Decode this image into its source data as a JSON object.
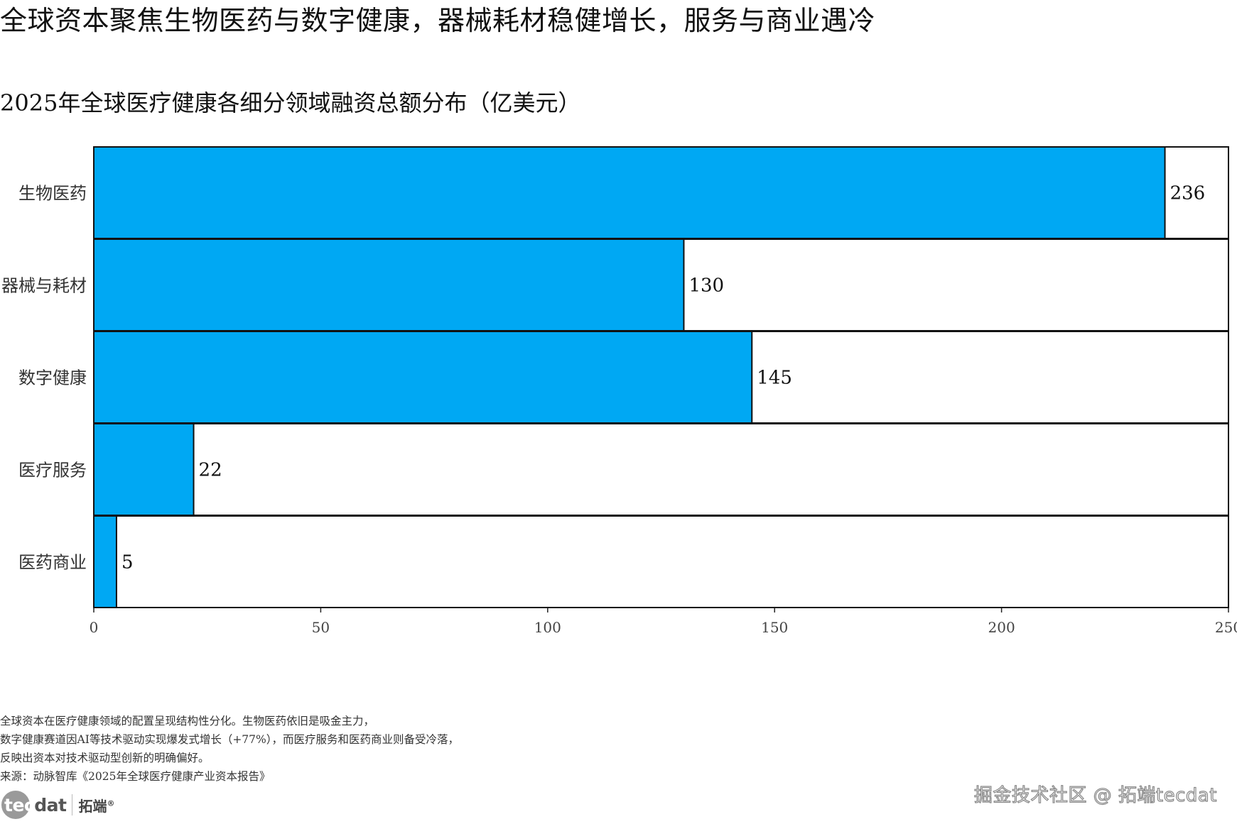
{
  "page": {
    "title": "全球资本聚焦生物医药与数字健康，器械耗材稳健增长，服务与商业遇冷"
  },
  "chart_data": {
    "type": "bar",
    "orientation": "horizontal",
    "title": "2025年全球医疗健康各细分领域融资总额分布（亿美元）",
    "categories": [
      "生物医药",
      "器械与耗材",
      "数字健康",
      "医疗服务",
      "医药商业"
    ],
    "values": [
      236,
      130,
      145,
      22,
      5
    ],
    "value_labels": [
      "236",
      "130",
      "145",
      "22",
      "5"
    ],
    "xlim": [
      0,
      250
    ],
    "xticks": [
      "0",
      "50",
      "100",
      "150",
      "200",
      "250"
    ],
    "xtick_values": [
      0,
      50,
      100,
      150,
      200,
      250
    ],
    "bar_color": "#00a8f3",
    "track_color": "#ffffff",
    "edge_color": "#111111",
    "grid": false,
    "legend": "none"
  },
  "notes": [
    "全球资本在医疗健康领域的配置呈现结构性分化。生物医药依旧是吸金主力，",
    "数字健康赛道因AI等技术驱动实现爆发式增长（+77%），而医疗服务和医药商业则备受冷落，",
    "反映出资本对技术驱动型创新的明确偏好。",
    "来源：动脉智库《2025年全球医疗健康产业资本报告》"
  ],
  "footer": {
    "logo_tec": "tec",
    "logo_dat": "dat",
    "logo_cn": "拓端",
    "logo_reg": "®",
    "watermark": "掘金技术社区 @ 拓端tecdat"
  }
}
